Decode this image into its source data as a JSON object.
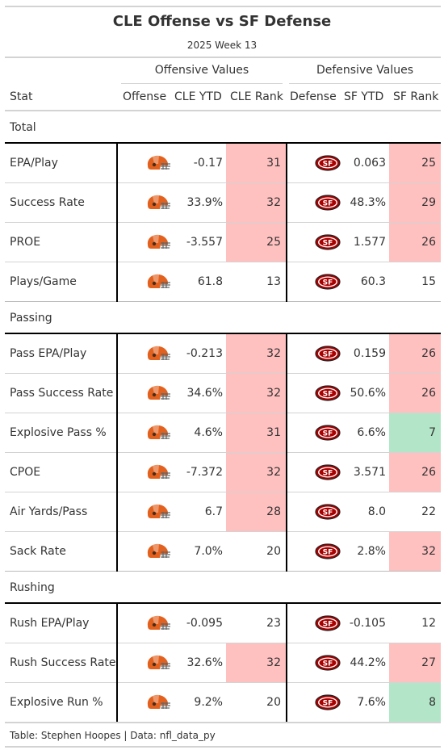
{
  "title": "CLE Offense vs SF Defense",
  "subtitle": "2025 Week 13",
  "spanners": {
    "offense": "Offensive Values",
    "defense": "Defensive Values"
  },
  "columns": {
    "stat": "Stat",
    "offense": "Offense",
    "cle_ytd": "CLE YTD",
    "cle_rank": "CLE Rank",
    "defense": "Defense",
    "sf_ytd": "SF YTD",
    "sf_rank": "SF Rank"
  },
  "colors": {
    "bad": "#ffc0c0",
    "good": "#b3e6c8",
    "browns": "#e3611e",
    "niners": "#aa0000"
  },
  "icons": {
    "offense": "cle-helmet-icon",
    "defense": "sf-logo-icon"
  },
  "groups": [
    {
      "label": "Total",
      "rows": [
        {
          "stat": "EPA/Play",
          "cle_ytd": "-0.17",
          "cle_rank": "31",
          "cle_rank_shade": "bad",
          "sf_ytd": "0.063",
          "sf_rank": "25",
          "sf_rank_shade": "bad"
        },
        {
          "stat": "Success Rate",
          "cle_ytd": "33.9%",
          "cle_rank": "32",
          "cle_rank_shade": "bad",
          "sf_ytd": "48.3%",
          "sf_rank": "29",
          "sf_rank_shade": "bad"
        },
        {
          "stat": "PROE",
          "cle_ytd": "-3.557",
          "cle_rank": "25",
          "cle_rank_shade": "bad",
          "sf_ytd": "1.577",
          "sf_rank": "26",
          "sf_rank_shade": "bad"
        },
        {
          "stat": "Plays/Game",
          "cle_ytd": "61.8",
          "cle_rank": "13",
          "cle_rank_shade": "none",
          "sf_ytd": "60.3",
          "sf_rank": "15",
          "sf_rank_shade": "none"
        }
      ]
    },
    {
      "label": "Passing",
      "rows": [
        {
          "stat": "Pass EPA/Play",
          "cle_ytd": "-0.213",
          "cle_rank": "32",
          "cle_rank_shade": "bad",
          "sf_ytd": "0.159",
          "sf_rank": "26",
          "sf_rank_shade": "bad"
        },
        {
          "stat": "Pass Success Rate",
          "cle_ytd": "34.6%",
          "cle_rank": "32",
          "cle_rank_shade": "bad",
          "sf_ytd": "50.6%",
          "sf_rank": "26",
          "sf_rank_shade": "bad"
        },
        {
          "stat": "Explosive Pass %",
          "cle_ytd": "4.6%",
          "cle_rank": "31",
          "cle_rank_shade": "bad",
          "sf_ytd": "6.6%",
          "sf_rank": "7",
          "sf_rank_shade": "good"
        },
        {
          "stat": "CPOE",
          "cle_ytd": "-7.372",
          "cle_rank": "32",
          "cle_rank_shade": "bad",
          "sf_ytd": "3.571",
          "sf_rank": "26",
          "sf_rank_shade": "bad"
        },
        {
          "stat": "Air Yards/Pass",
          "cle_ytd": "6.7",
          "cle_rank": "28",
          "cle_rank_shade": "bad",
          "sf_ytd": "8.0",
          "sf_rank": "22",
          "sf_rank_shade": "none"
        },
        {
          "stat": "Sack Rate",
          "cle_ytd": "7.0%",
          "cle_rank": "20",
          "cle_rank_shade": "none",
          "sf_ytd": "2.8%",
          "sf_rank": "32",
          "sf_rank_shade": "bad"
        }
      ]
    },
    {
      "label": "Rushing",
      "rows": [
        {
          "stat": "Rush EPA/Play",
          "cle_ytd": "-0.095",
          "cle_rank": "23",
          "cle_rank_shade": "none",
          "sf_ytd": "-0.105",
          "sf_rank": "12",
          "sf_rank_shade": "none"
        },
        {
          "stat": "Rush Success Rate",
          "cle_ytd": "32.6%",
          "cle_rank": "32",
          "cle_rank_shade": "bad",
          "sf_ytd": "44.2%",
          "sf_rank": "27",
          "sf_rank_shade": "bad"
        },
        {
          "stat": "Explosive Run %",
          "cle_ytd": "9.2%",
          "cle_rank": "20",
          "cle_rank_shade": "none",
          "sf_ytd": "7.6%",
          "sf_rank": "8",
          "sf_rank_shade": "good"
        }
      ]
    }
  ],
  "source_note": "Table: Stephen Hoopes | Data: nfl_data_py"
}
